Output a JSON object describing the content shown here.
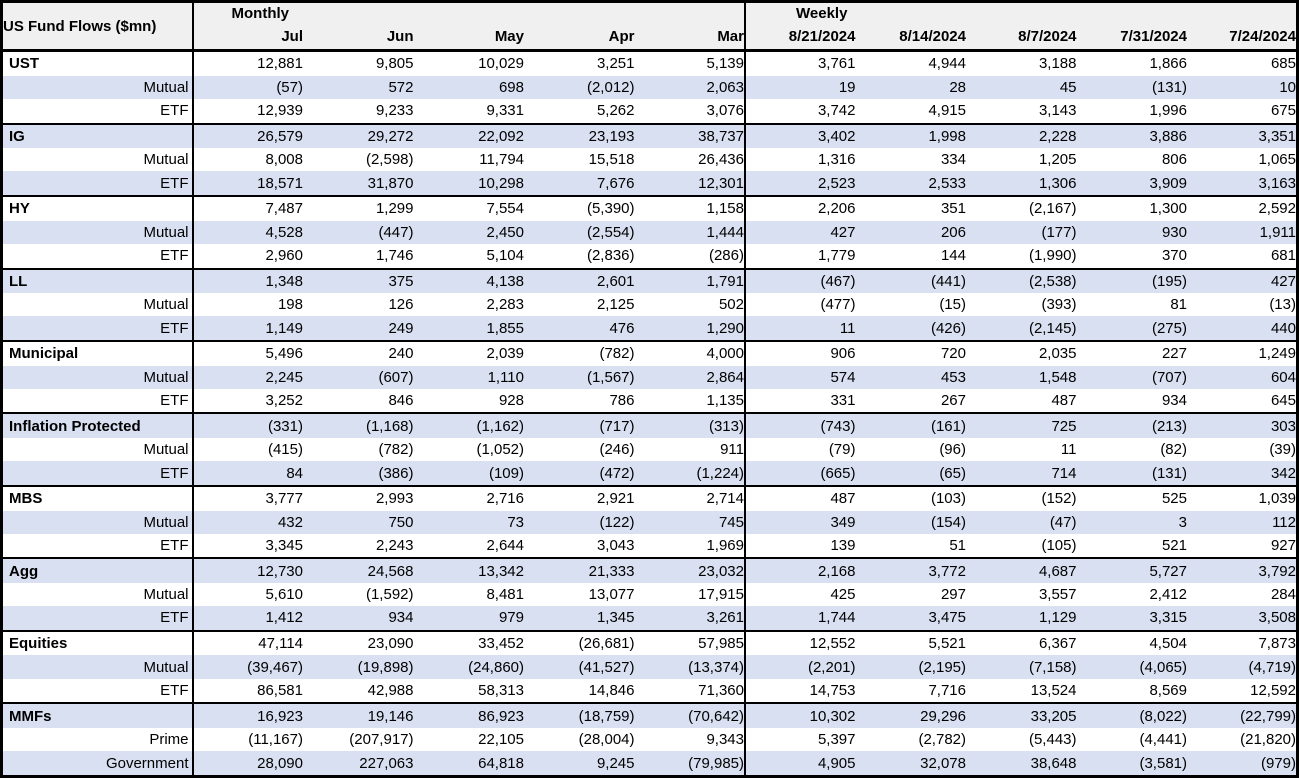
{
  "colors": {
    "row_shade": "#d9e0f2",
    "header_bg": "#f0f0f0",
    "border": "#000000",
    "text": "#000000"
  },
  "chart_data": {
    "type": "table",
    "title": "US Fund Flows ($mn)",
    "column_groups": [
      {
        "label": "Monthly",
        "columns": [
          "Jul",
          "Jun",
          "May",
          "Apr",
          "Mar"
        ]
      },
      {
        "label": "Weekly",
        "columns": [
          "8/21/2024",
          "8/14/2024",
          "8/7/2024",
          "7/31/2024",
          "7/24/2024"
        ]
      }
    ],
    "rows": [
      {
        "label": "UST",
        "style": "group",
        "values": [
          "12,881",
          "9,805",
          "10,029",
          "3,251",
          "5,139",
          "3,761",
          "4,944",
          "3,188",
          "1,866",
          "685"
        ]
      },
      {
        "label": "Mutual",
        "style": "sub",
        "values": [
          "(57)",
          "572",
          "698",
          "(2,012)",
          "2,063",
          "19",
          "28",
          "45",
          "(131)",
          "10"
        ]
      },
      {
        "label": "ETF",
        "style": "sub",
        "values": [
          "12,939",
          "9,233",
          "9,331",
          "5,262",
          "3,076",
          "3,742",
          "4,915",
          "3,143",
          "1,996",
          "675"
        ]
      },
      {
        "label": "IG",
        "style": "group",
        "values": [
          "26,579",
          "29,272",
          "22,092",
          "23,193",
          "38,737",
          "3,402",
          "1,998",
          "2,228",
          "3,886",
          "3,351"
        ]
      },
      {
        "label": "Mutual",
        "style": "sub",
        "values": [
          "8,008",
          "(2,598)",
          "11,794",
          "15,518",
          "26,436",
          "1,316",
          "334",
          "1,205",
          "806",
          "1,065"
        ]
      },
      {
        "label": "ETF",
        "style": "sub",
        "values": [
          "18,571",
          "31,870",
          "10,298",
          "7,676",
          "12,301",
          "2,523",
          "2,533",
          "1,306",
          "3,909",
          "3,163"
        ]
      },
      {
        "label": "HY",
        "style": "group",
        "values": [
          "7,487",
          "1,299",
          "7,554",
          "(5,390)",
          "1,158",
          "2,206",
          "351",
          "(2,167)",
          "1,300",
          "2,592"
        ]
      },
      {
        "label": "Mutual",
        "style": "sub",
        "values": [
          "4,528",
          "(447)",
          "2,450",
          "(2,554)",
          "1,444",
          "427",
          "206",
          "(177)",
          "930",
          "1,911"
        ]
      },
      {
        "label": "ETF",
        "style": "sub",
        "values": [
          "2,960",
          "1,746",
          "5,104",
          "(2,836)",
          "(286)",
          "1,779",
          "144",
          "(1,990)",
          "370",
          "681"
        ]
      },
      {
        "label": "LL",
        "style": "group",
        "values": [
          "1,348",
          "375",
          "4,138",
          "2,601",
          "1,791",
          "(467)",
          "(441)",
          "(2,538)",
          "(195)",
          "427"
        ]
      },
      {
        "label": "Mutual",
        "style": "sub",
        "values": [
          "198",
          "126",
          "2,283",
          "2,125",
          "502",
          "(477)",
          "(15)",
          "(393)",
          "81",
          "(13)"
        ]
      },
      {
        "label": "ETF",
        "style": "sub",
        "values": [
          "1,149",
          "249",
          "1,855",
          "476",
          "1,290",
          "11",
          "(426)",
          "(2,145)",
          "(275)",
          "440"
        ]
      },
      {
        "label": "Municipal",
        "style": "group",
        "values": [
          "5,496",
          "240",
          "2,039",
          "(782)",
          "4,000",
          "906",
          "720",
          "2,035",
          "227",
          "1,249"
        ]
      },
      {
        "label": "Mutual",
        "style": "sub",
        "values": [
          "2,245",
          "(607)",
          "1,110",
          "(1,567)",
          "2,864",
          "574",
          "453",
          "1,548",
          "(707)",
          "604"
        ]
      },
      {
        "label": "ETF",
        "style": "sub",
        "values": [
          "3,252",
          "846",
          "928",
          "786",
          "1,135",
          "331",
          "267",
          "487",
          "934",
          "645"
        ]
      },
      {
        "label": "Inflation Protected",
        "style": "group",
        "values": [
          "(331)",
          "(1,168)",
          "(1,162)",
          "(717)",
          "(313)",
          "(743)",
          "(161)",
          "725",
          "(213)",
          "303"
        ]
      },
      {
        "label": "Mutual",
        "style": "sub",
        "values": [
          "(415)",
          "(782)",
          "(1,052)",
          "(246)",
          "911",
          "(79)",
          "(96)",
          "11",
          "(82)",
          "(39)"
        ]
      },
      {
        "label": "ETF",
        "style": "sub",
        "values": [
          "84",
          "(386)",
          "(109)",
          "(472)",
          "(1,224)",
          "(665)",
          "(65)",
          "714",
          "(131)",
          "342"
        ]
      },
      {
        "label": "MBS",
        "style": "group",
        "values": [
          "3,777",
          "2,993",
          "2,716",
          "2,921",
          "2,714",
          "487",
          "(103)",
          "(152)",
          "525",
          "1,039"
        ]
      },
      {
        "label": "Mutual",
        "style": "sub",
        "values": [
          "432",
          "750",
          "73",
          "(122)",
          "745",
          "349",
          "(154)",
          "(47)",
          "3",
          "112"
        ]
      },
      {
        "label": "ETF",
        "style": "sub",
        "values": [
          "3,345",
          "2,243",
          "2,644",
          "3,043",
          "1,969",
          "139",
          "51",
          "(105)",
          "521",
          "927"
        ]
      },
      {
        "label": "Agg",
        "style": "group",
        "values": [
          "12,730",
          "24,568",
          "13,342",
          "21,333",
          "23,032",
          "2,168",
          "3,772",
          "4,687",
          "5,727",
          "3,792"
        ]
      },
      {
        "label": "Mutual",
        "style": "sub",
        "values": [
          "5,610",
          "(1,592)",
          "8,481",
          "13,077",
          "17,915",
          "425",
          "297",
          "3,557",
          "2,412",
          "284"
        ]
      },
      {
        "label": "ETF",
        "style": "sub",
        "values": [
          "1,412",
          "934",
          "979",
          "1,345",
          "3,261",
          "1,744",
          "3,475",
          "1,129",
          "3,315",
          "3,508"
        ]
      },
      {
        "label": "Equities",
        "style": "group",
        "values": [
          "47,114",
          "23,090",
          "33,452",
          "(26,681)",
          "57,985",
          "12,552",
          "5,521",
          "6,367",
          "4,504",
          "7,873"
        ]
      },
      {
        "label": "Mutual",
        "style": "sub",
        "values": [
          "(39,467)",
          "(19,898)",
          "(24,860)",
          "(41,527)",
          "(13,374)",
          "(2,201)",
          "(2,195)",
          "(7,158)",
          "(4,065)",
          "(4,719)"
        ]
      },
      {
        "label": "ETF",
        "style": "sub",
        "values": [
          "86,581",
          "42,988",
          "58,313",
          "14,846",
          "71,360",
          "14,753",
          "7,716",
          "13,524",
          "8,569",
          "12,592"
        ]
      },
      {
        "label": "MMFs",
        "style": "group",
        "values": [
          "16,923",
          "19,146",
          "86,923",
          "(18,759)",
          "(70,642)",
          "10,302",
          "29,296",
          "33,205",
          "(8,022)",
          "(22,799)"
        ]
      },
      {
        "label": "Prime",
        "style": "sub",
        "values": [
          "(11,167)",
          "(207,917)",
          "22,105",
          "(28,004)",
          "9,343",
          "5,397",
          "(2,782)",
          "(5,443)",
          "(4,441)",
          "(21,820)"
        ]
      },
      {
        "label": "Government",
        "style": "sub",
        "values": [
          "28,090",
          "227,063",
          "64,818",
          "9,245",
          "(79,985)",
          "4,905",
          "32,078",
          "38,648",
          "(3,581)",
          "(979)"
        ]
      }
    ]
  }
}
